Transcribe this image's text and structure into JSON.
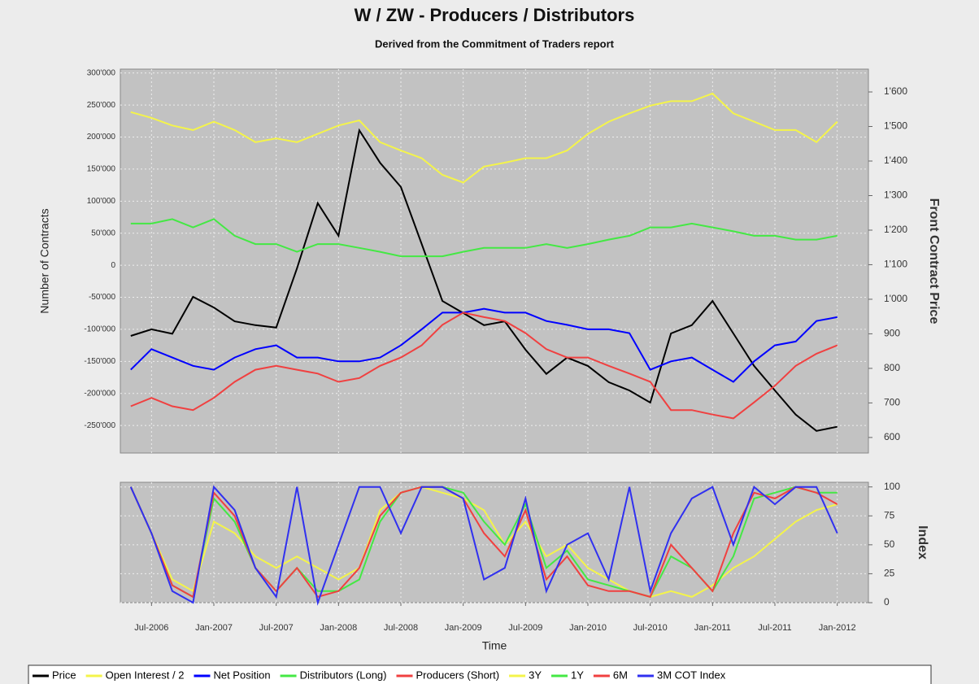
{
  "chart_data": [
    {
      "type": "line",
      "title": "W / ZW - Producers / Distributors",
      "subtitle": "Derived from the Commitment of Traders report",
      "ylabel": "Number of Contracts",
      "y2label": "Front Contract Price",
      "x": [
        "2006-05",
        "2006-07",
        "2006-09",
        "2006-11",
        "2007-01",
        "2007-03",
        "2007-05",
        "2007-07",
        "2007-09",
        "2007-11",
        "2008-01",
        "2008-03",
        "2008-05",
        "2008-07",
        "2008-09",
        "2008-11",
        "2009-01",
        "2009-03",
        "2009-05",
        "2009-07",
        "2009-09",
        "2009-11",
        "2010-01",
        "2010-03",
        "2010-05",
        "2010-07",
        "2010-09",
        "2010-11",
        "2011-01",
        "2011-03",
        "2011-05",
        "2011-07",
        "2011-09",
        "2011-11",
        "2012-01"
      ],
      "xlim": [
        "2006-04",
        "2012-04"
      ],
      "ylim": [
        -293000,
        306000
      ],
      "yticks": [
        {
          "value": 300000,
          "label": "300'000"
        },
        {
          "value": 250000,
          "label": "250'000"
        },
        {
          "value": 200000,
          "label": "200'000"
        },
        {
          "value": 150000,
          "label": "150'000"
        },
        {
          "value": 100000,
          "label": "100'000"
        },
        {
          "value": 50000,
          "label": "50'000"
        },
        0,
        {
          "value": -50000,
          "label": "-50'000"
        },
        {
          "value": -100000,
          "label": "-100'000"
        },
        {
          "value": -150000,
          "label": "-150'000"
        },
        {
          "value": -200000,
          "label": "-200'000"
        },
        {
          "value": -250000,
          "label": "-250'000"
        }
      ],
      "y2lim": [
        555,
        1666
      ],
      "y2ticks": [
        {
          "value": 1600,
          "label": "1'600"
        },
        {
          "value": 1500,
          "label": "1'500"
        },
        {
          "value": 1400,
          "label": "1'400"
        },
        {
          "value": 1300,
          "label": "1'300"
        },
        {
          "value": 1200,
          "label": "1'200"
        },
        {
          "value": 1100,
          "label": "1'100"
        },
        {
          "value": 1000,
          "label": "1'000"
        },
        900,
        800,
        700,
        600
      ],
      "grid": true,
      "series": [
        {
          "name": "Price",
          "color": "#000000",
          "axis": "y2",
          "values": [
            894,
            913,
            900,
            1007,
            976,
            936,
            925,
            918,
            1089,
            1278,
            1184,
            1489,
            1395,
            1325,
            1160,
            995,
            960,
            925,
            936,
            854,
            784,
            831,
            807,
            760,
            736,
            701,
            901,
            925,
            995,
            901,
            807,
            736,
            666,
            619,
            631
          ]
        },
        {
          "name": "Open Interest / 2",
          "color": "#f4f44a",
          "values": [
            239000,
            230000,
            218000,
            211000,
            224000,
            211000,
            192000,
            198000,
            192000,
            205000,
            218000,
            226000,
            192000,
            179000,
            167000,
            141000,
            129000,
            154000,
            160000,
            167000,
            167000,
            179000,
            205000,
            224000,
            237000,
            249000,
            256000,
            256000,
            268000,
            237000,
            224000,
            211000,
            211000,
            192000,
            224000
          ]
        },
        {
          "name": "Net Position",
          "color": "#0000ff",
          "values": [
            -163000,
            -131000,
            -144000,
            -157000,
            -163000,
            -144000,
            -131000,
            -125000,
            -144000,
            -144000,
            -150000,
            -150000,
            -144000,
            -125000,
            -100000,
            -74000,
            -74000,
            -68000,
            -74000,
            -74000,
            -87000,
            -93000,
            -100000,
            -100000,
            -106000,
            -163000,
            -150000,
            -144000,
            -163000,
            -182000,
            -150000,
            -125000,
            -119000,
            -87000,
            -81000
          ]
        },
        {
          "name": "Distributors (Long)",
          "color": "#44e844",
          "values": [
            65000,
            65000,
            72000,
            59000,
            72000,
            46000,
            33000,
            33000,
            21000,
            33000,
            33000,
            27000,
            21000,
            14000,
            14000,
            14000,
            21000,
            27000,
            27000,
            27000,
            33000,
            27000,
            33000,
            40000,
            46000,
            59000,
            59000,
            65000,
            59000,
            53000,
            46000,
            46000,
            40000,
            40000,
            46000
          ]
        },
        {
          "name": "Producers (Short)",
          "color": "#f04040",
          "values": [
            -220000,
            -207000,
            -220000,
            -226000,
            -207000,
            -182000,
            -163000,
            -157000,
            -163000,
            -169000,
            -182000,
            -176000,
            -157000,
            -144000,
            -125000,
            -93000,
            -74000,
            -81000,
            -87000,
            -106000,
            -131000,
            -144000,
            -144000,
            -157000,
            -169000,
            -182000,
            -226000,
            -226000,
            -233000,
            -239000,
            -214000,
            -188000,
            -157000,
            -138000,
            -125000
          ]
        }
      ]
    },
    {
      "type": "line",
      "xlabel": "Time",
      "y2label": "Index",
      "x": [
        "2006-05",
        "2006-07",
        "2006-09",
        "2006-11",
        "2007-01",
        "2007-03",
        "2007-05",
        "2007-07",
        "2007-09",
        "2007-11",
        "2008-01",
        "2008-03",
        "2008-05",
        "2008-07",
        "2008-09",
        "2008-11",
        "2009-01",
        "2009-03",
        "2009-05",
        "2009-07",
        "2009-09",
        "2009-11",
        "2010-01",
        "2010-03",
        "2010-05",
        "2010-07",
        "2010-09",
        "2010-11",
        "2011-01",
        "2011-03",
        "2011-05",
        "2011-07",
        "2011-09",
        "2011-11",
        "2012-01"
      ],
      "xlim": [
        "2006-04",
        "2012-04"
      ],
      "xticks": [
        {
          "value": "2006-07",
          "label": "Jul-2006"
        },
        {
          "value": "2007-01",
          "label": "Jan-2007"
        },
        {
          "value": "2007-07",
          "label": "Jul-2007"
        },
        {
          "value": "2008-01",
          "label": "Jan-2008"
        },
        {
          "value": "2008-07",
          "label": "Jul-2008"
        },
        {
          "value": "2009-01",
          "label": "Jan-2009"
        },
        {
          "value": "2009-07",
          "label": "Jul-2009"
        },
        {
          "value": "2010-01",
          "label": "Jan-2010"
        },
        {
          "value": "2010-07",
          "label": "Jul-2010"
        },
        {
          "value": "2011-01",
          "label": "Jan-2011"
        },
        {
          "value": "2011-07",
          "label": "Jul-2011"
        },
        {
          "value": "2012-01",
          "label": "Jan-2012"
        }
      ],
      "y2lim": [
        0,
        104
      ],
      "y2ticks": [
        100,
        75,
        50,
        25,
        0
      ],
      "grid": true,
      "series": [
        {
          "name": "3Y",
          "color": "#f4f44a",
          "axis": "y2",
          "values": [
            100,
            60,
            20,
            10,
            70,
            60,
            40,
            30,
            40,
            30,
            20,
            30,
            80,
            95,
            100,
            95,
            90,
            80,
            50,
            70,
            40,
            50,
            30,
            20,
            10,
            5,
            10,
            5,
            15,
            30,
            40,
            55,
            70,
            80,
            85
          ]
        },
        {
          "name": "1Y",
          "color": "#44e844",
          "axis": "y2",
          "values": [
            100,
            60,
            15,
            5,
            90,
            70,
            30,
            10,
            30,
            10,
            10,
            20,
            70,
            95,
            100,
            100,
            95,
            70,
            50,
            85,
            30,
            45,
            20,
            15,
            10,
            5,
            40,
            30,
            10,
            40,
            90,
            95,
            100,
            95,
            95
          ]
        },
        {
          "name": "6M",
          "color": "#f04040",
          "axis": "y2",
          "values": [
            100,
            60,
            15,
            5,
            95,
            75,
            30,
            10,
            30,
            5,
            10,
            30,
            75,
            95,
            100,
            100,
            90,
            60,
            40,
            80,
            20,
            40,
            15,
            10,
            10,
            5,
            50,
            30,
            10,
            60,
            95,
            90,
            100,
            95,
            85
          ]
        },
        {
          "name": "3M COT Index",
          "color": "#3030f0",
          "axis": "y2",
          "values": [
            100,
            60,
            10,
            0,
            100,
            80,
            30,
            5,
            100,
            0,
            50,
            100,
            100,
            60,
            100,
            100,
            90,
            20,
            30,
            90,
            10,
            50,
            60,
            20,
            100,
            10,
            60,
            90,
            100,
            50,
            100,
            85,
            100,
            100,
            60
          ]
        }
      ]
    }
  ]
}
